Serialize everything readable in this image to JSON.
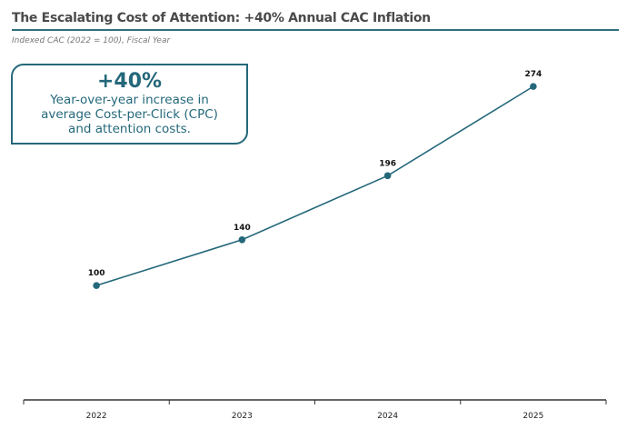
{
  "chart_data": {
    "type": "line",
    "title": "The Escalating Cost of Attention: +40% Annual CAC Inflation",
    "subtitle": "Indexed CAC (2022 = 100), Fiscal Year",
    "categories": [
      "2022",
      "2023",
      "2024",
      "2025"
    ],
    "series": [
      {
        "name": "Indexed CAC",
        "values": [
          100,
          140,
          196,
          274
        ],
        "color": "#24687a"
      }
    ],
    "xlabel": "",
    "ylabel": "",
    "ylim": [
      0,
      300
    ],
    "grid": false,
    "annotation": {
      "headline": "+40%",
      "text": [
        "Year-over-year increase in",
        "average Cost-per-Click (CPC)",
        "and attention costs."
      ]
    }
  }
}
